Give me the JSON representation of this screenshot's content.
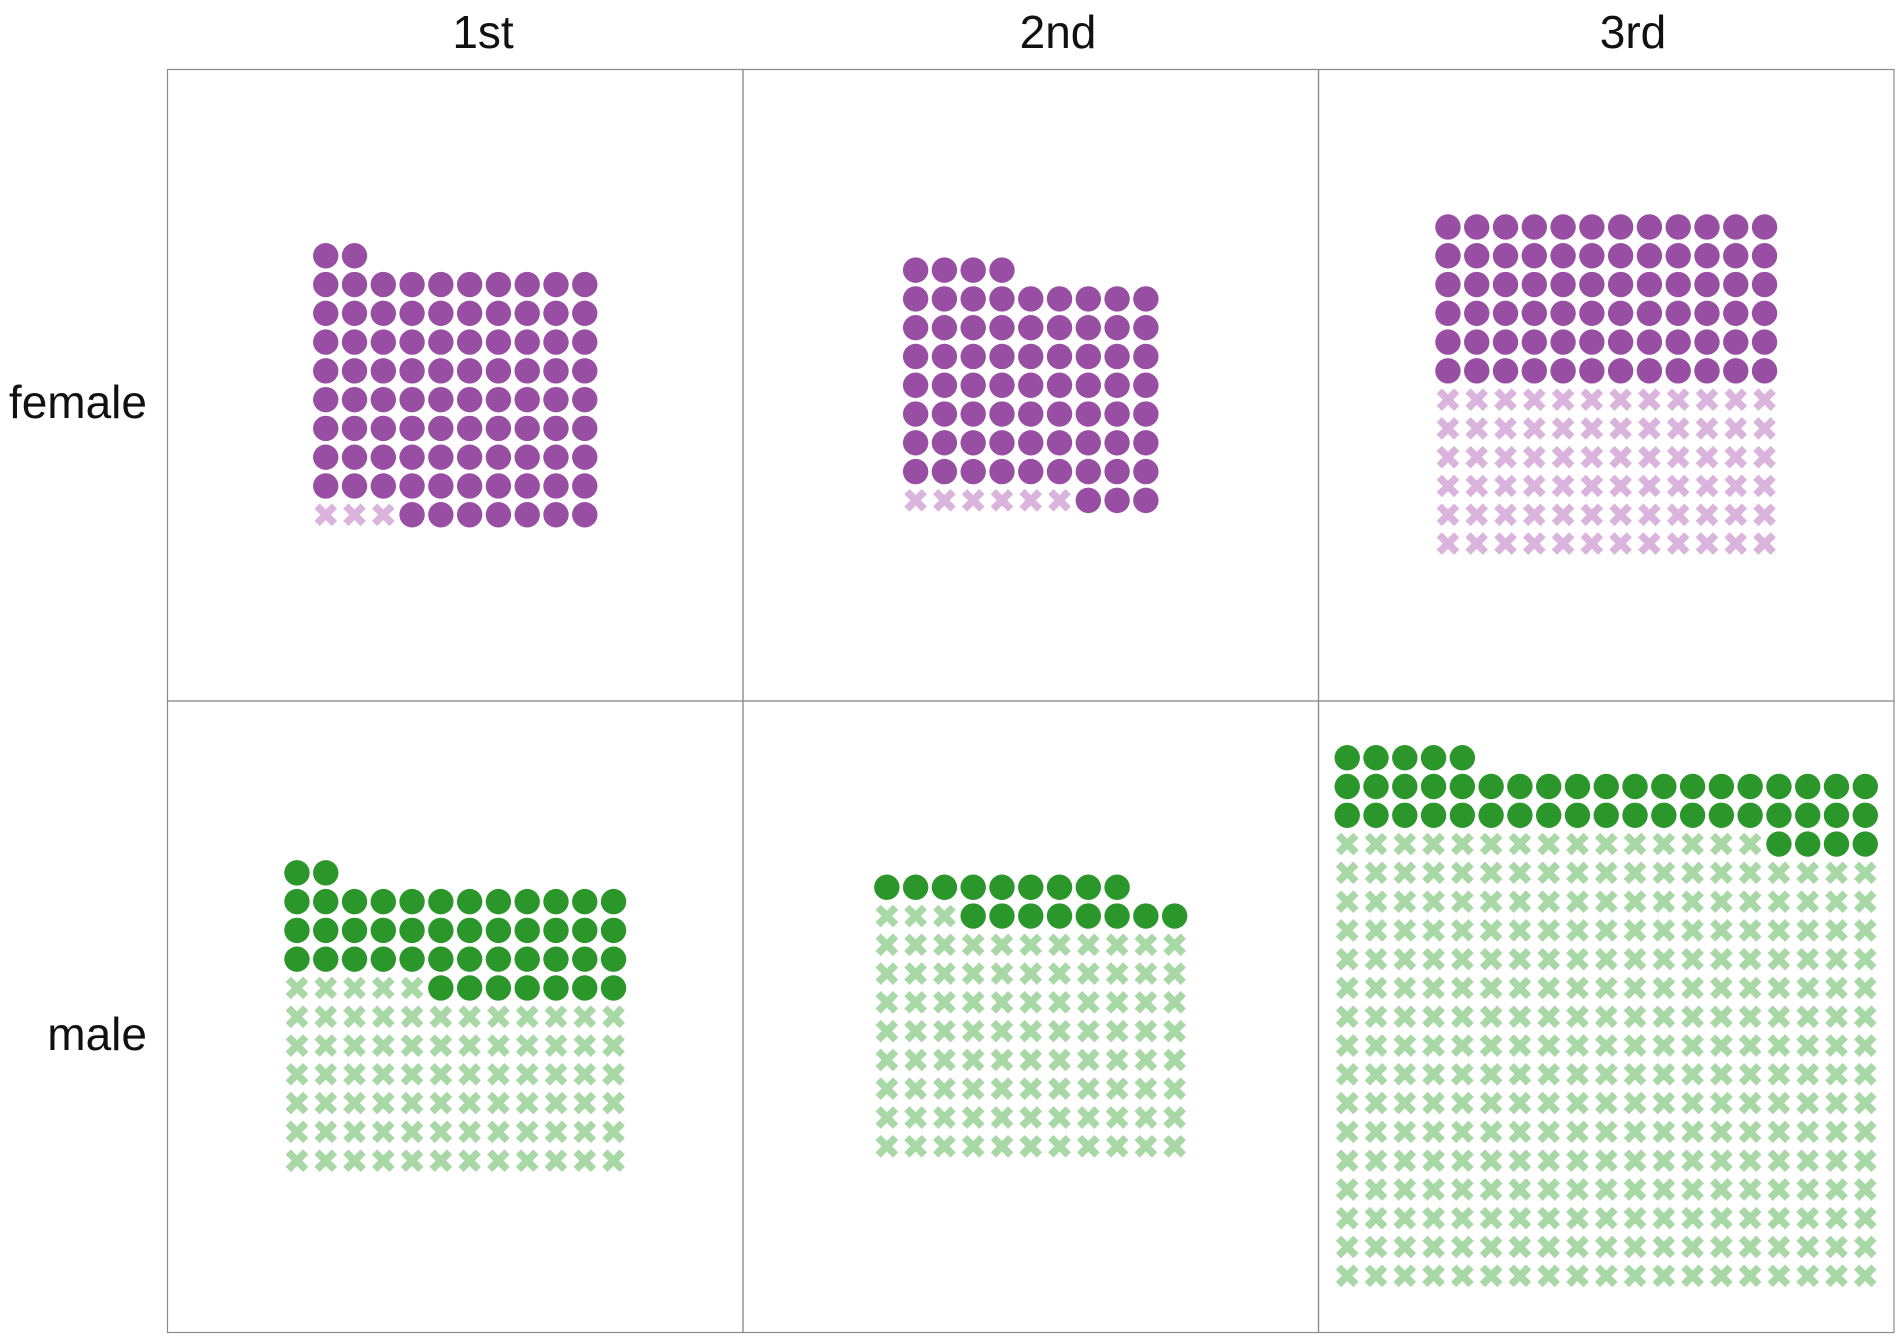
{
  "chart_data": {
    "type": "waffle",
    "columns": [
      "1st",
      "2nd",
      "3rd"
    ],
    "rows": [
      "female",
      "male"
    ],
    "circle_counts": [
      [
        89,
        70,
        72
      ],
      [
        45,
        17,
        47
      ]
    ],
    "cross_counts": [
      [
        3,
        6,
        72
      ],
      [
        77,
        91,
        300
      ]
    ],
    "markers": {
      "filled": "circle",
      "crossed": "x"
    },
    "colors": {
      "female": {
        "circle": "#984ea3",
        "cross": "#dab4dd"
      },
      "male": {
        "circle": "#2b962a",
        "cross": "#a8d8a5"
      }
    },
    "border_color": "#8a8a8a",
    "legend": "none"
  }
}
